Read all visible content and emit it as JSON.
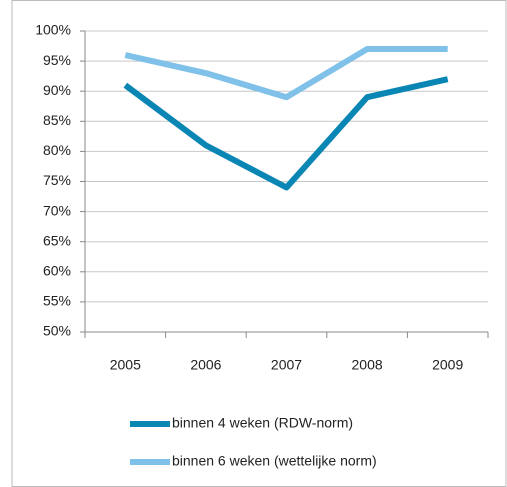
{
  "chart_data": {
    "type": "line",
    "categories": [
      "2005",
      "2006",
      "2007",
      "2008",
      "2009"
    ],
    "series": [
      {
        "name": "binnen 4 weken  (RDW-norm)",
        "color": "#0a86b5",
        "values": [
          91,
          81,
          74,
          89,
          92
        ]
      },
      {
        "name": "binnen 6 weken  (wettelijke  norm)",
        "color": "#7fc1e8",
        "values": [
          96,
          93,
          89,
          97,
          97
        ]
      }
    ],
    "ylim": [
      50,
      100
    ],
    "yticks": [
      {
        "value": 50,
        "label": "50%"
      },
      {
        "value": 55,
        "label": "55%"
      },
      {
        "value": 60,
        "label": "60%"
      },
      {
        "value": 65,
        "label": "65%"
      },
      {
        "value": 70,
        "label": "70%"
      },
      {
        "value": 75,
        "label": "75%"
      },
      {
        "value": 80,
        "label": "80%"
      },
      {
        "value": 85,
        "label": "85%"
      },
      {
        "value": 90,
        "label": "90%"
      },
      {
        "value": 95,
        "label": "95%"
      },
      {
        "value": 100,
        "label": "100%"
      }
    ],
    "grid": true,
    "legend": "bottom"
  }
}
